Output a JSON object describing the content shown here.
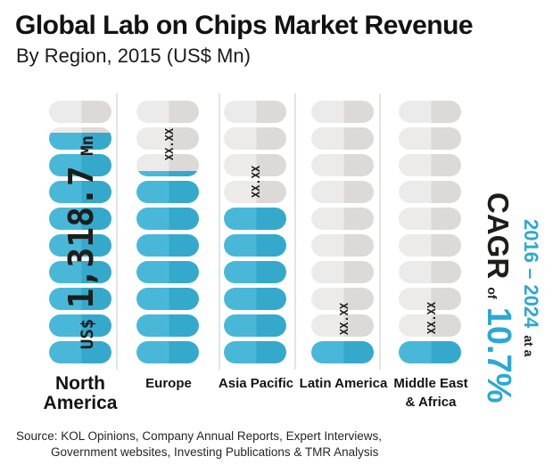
{
  "title": "Global Lab on Chips Market Revenue",
  "subtitle": "By Region, 2015 (US$ Mn)",
  "chart_data": {
    "type": "bar",
    "pictogram": "pill-capsule",
    "title": "Global Lab on Chips Market Revenue",
    "subtitle": "By Region, 2015 (US$ Mn)",
    "unit": "US$ Mn",
    "year": "2015",
    "pills_per_column": 10,
    "categories": [
      "North America",
      "Europe",
      "Asia Pacific",
      "Latin America",
      "Middle East & Africa"
    ],
    "values": [
      1318.7,
      null,
      null,
      null,
      null
    ],
    "value_labels": [
      "US$ 1,318.7 Mn",
      "XX.XX",
      "XX.XX",
      "XX.XX",
      "XX.XX"
    ],
    "value_label_parts": [
      {
        "prefix": "US$ ",
        "value": "1,318.7",
        "suffix": " Mn"
      },
      null,
      null,
      null,
      null
    ],
    "filled_pills": [
      8.78,
      7.25,
      6,
      1,
      1
    ],
    "region_label_lines": [
      [
        "North",
        "America"
      ],
      [
        "Europe"
      ],
      [
        "Asia Pacific"
      ],
      [
        "Latin America"
      ],
      [
        "Middle East",
        "& Africa"
      ]
    ]
  },
  "cagr": {
    "period": "2016 – 2024",
    "at_a": "at a",
    "label": "CAGR",
    "of": "of",
    "value": "10.7%"
  },
  "source": {
    "line1": "Source: KOL Opinions, Company Annual Reports, Expert Interviews,",
    "line2": "Government websites, Investing Publications & TMR Analysis"
  },
  "colors": {
    "pill_blue_light": "#49b8d8",
    "pill_blue_dark": "#35a9cc",
    "pill_gray_light": "#ecebe9",
    "pill_gray_dark": "#dcd9d7",
    "accent_blue": "#2aa9d2",
    "text_black": "#1d1d1b",
    "divider": "#e6e4e2"
  }
}
